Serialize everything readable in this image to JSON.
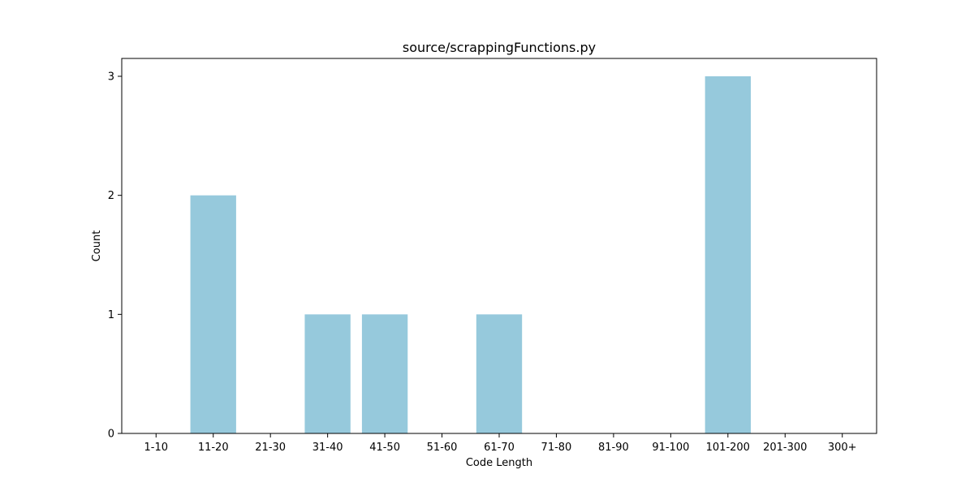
{
  "chart_data": {
    "type": "bar",
    "title": "source/scrappingFunctions.py",
    "xlabel": "Code Length",
    "ylabel": "Count",
    "categories": [
      "1-10",
      "11-20",
      "21-30",
      "31-40",
      "41-50",
      "51-60",
      "61-70",
      "71-80",
      "81-90",
      "91-100",
      "101-200",
      "201-300",
      "300+"
    ],
    "values": [
      0,
      2,
      0,
      1,
      1,
      0,
      1,
      0,
      0,
      0,
      3,
      0,
      0
    ],
    "ylim": [
      0,
      3.15
    ],
    "yticks": [
      0,
      1,
      2,
      3
    ],
    "grid": false,
    "bar_color": "#96c9dc"
  }
}
